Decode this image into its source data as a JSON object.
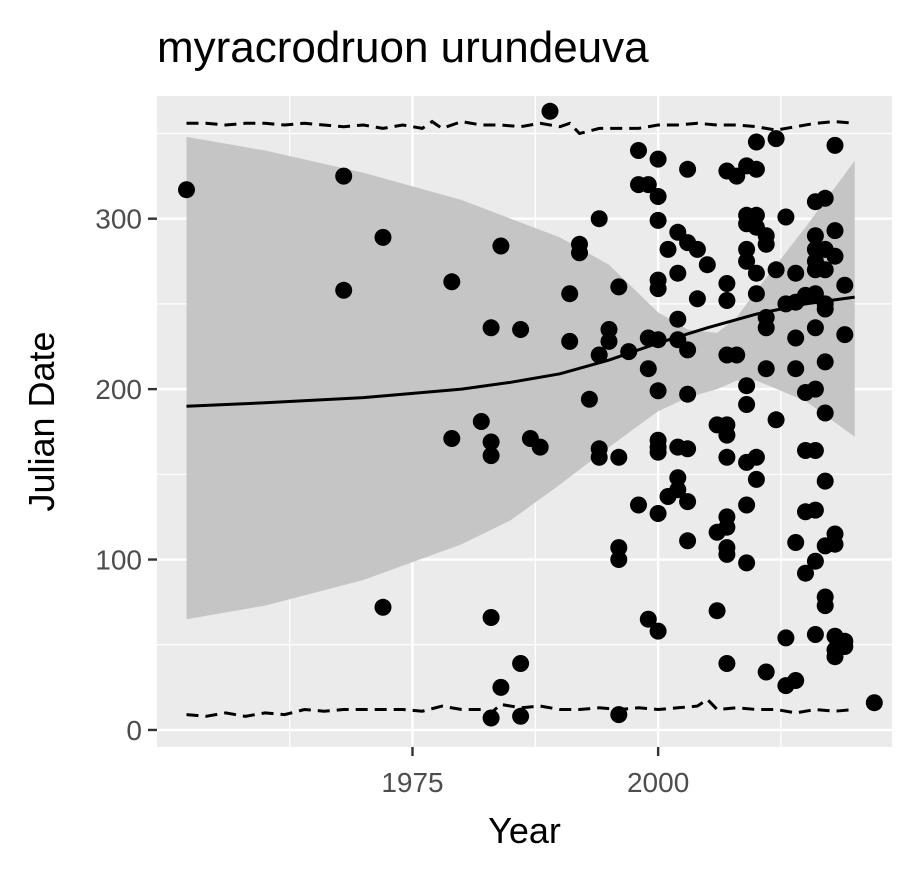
{
  "chart_data": {
    "type": "scatter",
    "title": "myracrodruon urundeuva",
    "xlabel": "Year",
    "ylabel": "Julian Date",
    "xlim": [
      1949,
      2023.8
    ],
    "ylim": [
      -10,
      372
    ],
    "x_ticks": [
      1975,
      2000
    ],
    "x_minor_ticks": [
      1962.5,
      1987.5,
      2012.5
    ],
    "y_ticks": [
      0,
      100,
      200,
      300
    ],
    "y_minor_ticks": [
      50,
      150,
      250,
      350
    ],
    "grid": true,
    "colors": {
      "panel": "#ebebeb",
      "grid": "#ffffff",
      "points": "#000000",
      "ribbon": "#c5c5c5",
      "trend": "#000000",
      "bounds": "#000000"
    },
    "points": [
      [
        1952,
        317
      ],
      [
        1968,
        325
      ],
      [
        1968,
        258
      ],
      [
        1972,
        289
      ],
      [
        1972,
        72
      ],
      [
        1979,
        263
      ],
      [
        1979,
        171
      ],
      [
        1982,
        181
      ],
      [
        1983,
        236
      ],
      [
        1983,
        169
      ],
      [
        1983,
        161
      ],
      [
        1983,
        66
      ],
      [
        1983,
        7
      ],
      [
        1984,
        284
      ],
      [
        1984,
        25
      ],
      [
        1986,
        235
      ],
      [
        1986,
        39
      ],
      [
        1986,
        8
      ],
      [
        1987,
        171
      ],
      [
        1988,
        166
      ],
      [
        1989,
        363
      ],
      [
        1991,
        256
      ],
      [
        1991,
        228
      ],
      [
        1992,
        285
      ],
      [
        1992,
        280
      ],
      [
        1993,
        194
      ],
      [
        1994,
        300
      ],
      [
        1994,
        220
      ],
      [
        1994,
        165
      ],
      [
        1994,
        160
      ],
      [
        1995,
        235
      ],
      [
        1995,
        228
      ],
      [
        1996,
        260
      ],
      [
        1996,
        160
      ],
      [
        1996,
        107
      ],
      [
        1996,
        100
      ],
      [
        1996,
        9
      ],
      [
        1997,
        222
      ],
      [
        1998,
        340
      ],
      [
        1998,
        320
      ],
      [
        1998,
        132
      ],
      [
        1999,
        320
      ],
      [
        1999,
        230
      ],
      [
        1999,
        212
      ],
      [
        1999,
        65
      ],
      [
        2000,
        335
      ],
      [
        2000,
        313
      ],
      [
        2000,
        299
      ],
      [
        2000,
        264
      ],
      [
        2000,
        259
      ],
      [
        2000,
        229
      ],
      [
        2000,
        199
      ],
      [
        2000,
        170
      ],
      [
        2000,
        166
      ],
      [
        2000,
        163
      ],
      [
        2000,
        127
      ],
      [
        2000,
        58
      ],
      [
        2001,
        282
      ],
      [
        2001,
        137
      ],
      [
        2002,
        292
      ],
      [
        2002,
        268
      ],
      [
        2002,
        241
      ],
      [
        2002,
        229
      ],
      [
        2002,
        166
      ],
      [
        2002,
        148
      ],
      [
        2002,
        141
      ],
      [
        2003,
        329
      ],
      [
        2003,
        286
      ],
      [
        2003,
        223
      ],
      [
        2003,
        197
      ],
      [
        2003,
        165
      ],
      [
        2003,
        134
      ],
      [
        2003,
        111
      ],
      [
        2004,
        282
      ],
      [
        2004,
        253
      ],
      [
        2005,
        273
      ],
      [
        2006,
        179
      ],
      [
        2006,
        116
      ],
      [
        2006,
        70
      ],
      [
        2007,
        328
      ],
      [
        2007,
        262
      ],
      [
        2007,
        252
      ],
      [
        2007,
        220
      ],
      [
        2007,
        179
      ],
      [
        2007,
        173
      ],
      [
        2007,
        160
      ],
      [
        2007,
        125
      ],
      [
        2007,
        119
      ],
      [
        2007,
        107
      ],
      [
        2007,
        103
      ],
      [
        2007,
        39
      ],
      [
        2008,
        325
      ],
      [
        2008,
        220
      ],
      [
        2009,
        331
      ],
      [
        2009,
        302
      ],
      [
        2009,
        297
      ],
      [
        2009,
        282
      ],
      [
        2009,
        275
      ],
      [
        2009,
        202
      ],
      [
        2009,
        191
      ],
      [
        2009,
        157
      ],
      [
        2009,
        132
      ],
      [
        2009,
        98
      ],
      [
        2010,
        345
      ],
      [
        2010,
        329
      ],
      [
        2010,
        302
      ],
      [
        2010,
        295
      ],
      [
        2010,
        268
      ],
      [
        2010,
        256
      ],
      [
        2010,
        160
      ],
      [
        2010,
        147
      ],
      [
        2011,
        290
      ],
      [
        2011,
        285
      ],
      [
        2011,
        242
      ],
      [
        2011,
        236
      ],
      [
        2011,
        212
      ],
      [
        2011,
        34
      ],
      [
        2012,
        347
      ],
      [
        2012,
        270
      ],
      [
        2012,
        182
      ],
      [
        2013,
        301
      ],
      [
        2013,
        250
      ],
      [
        2013,
        54
      ],
      [
        2013,
        26
      ],
      [
        2014,
        268
      ],
      [
        2014,
        251
      ],
      [
        2014,
        230
      ],
      [
        2014,
        212
      ],
      [
        2014,
        110
      ],
      [
        2014,
        29
      ],
      [
        2015,
        255
      ],
      [
        2015,
        198
      ],
      [
        2015,
        164
      ],
      [
        2015,
        128
      ],
      [
        2015,
        92
      ],
      [
        2016,
        310
      ],
      [
        2016,
        290
      ],
      [
        2016,
        282
      ],
      [
        2016,
        275
      ],
      [
        2016,
        270
      ],
      [
        2016,
        256
      ],
      [
        2016,
        236
      ],
      [
        2016,
        200
      ],
      [
        2016,
        164
      ],
      [
        2016,
        129
      ],
      [
        2016,
        99
      ],
      [
        2016,
        56
      ],
      [
        2017,
        312
      ],
      [
        2017,
        282
      ],
      [
        2017,
        270
      ],
      [
        2017,
        250
      ],
      [
        2017,
        247
      ],
      [
        2017,
        216
      ],
      [
        2017,
        186
      ],
      [
        2017,
        146
      ],
      [
        2017,
        108
      ],
      [
        2017,
        78
      ],
      [
        2017,
        73
      ],
      [
        2018,
        343
      ],
      [
        2018,
        293
      ],
      [
        2018,
        278
      ],
      [
        2018,
        115
      ],
      [
        2018,
        109
      ],
      [
        2018,
        55
      ],
      [
        2018,
        47
      ],
      [
        2018,
        43
      ],
      [
        2019,
        261
      ],
      [
        2019,
        232
      ],
      [
        2019,
        52
      ],
      [
        2019,
        49
      ],
      [
        2022,
        16
      ]
    ],
    "trend": {
      "x": [
        1952,
        1960,
        1970,
        1980,
        1985,
        1990,
        1995,
        2000,
        2005,
        2010,
        2015,
        2020
      ],
      "y": [
        190,
        192,
        195,
        200,
        204,
        209,
        217,
        227,
        236,
        244,
        250,
        254
      ]
    },
    "ribbon": {
      "x": [
        1952,
        1960,
        1970,
        1980,
        1985,
        1990,
        1995,
        2000,
        2003,
        2006,
        2008,
        2010,
        2015,
        2020
      ],
      "upper": [
        348,
        340,
        327,
        311,
        300,
        289,
        273,
        245,
        235,
        233,
        242,
        258,
        295,
        334
      ],
      "lower": [
        65,
        73,
        88,
        109,
        123,
        144,
        166,
        187,
        195,
        200,
        205,
        205,
        193,
        172
      ]
    },
    "upper_bound": {
      "x": [
        1952,
        1954,
        1956,
        1958,
        1960,
        1962,
        1964,
        1966,
        1968,
        1970,
        1972,
        1974,
        1976,
        1977,
        1978,
        1980,
        1982,
        1984,
        1986,
        1988,
        1990,
        1991,
        1992,
        1994,
        1996,
        1998,
        2000,
        2002,
        2004,
        2006,
        2008,
        2010,
        2012,
        2014,
        2016,
        2018,
        2020
      ],
      "y": [
        356,
        356,
        355,
        356,
        356,
        355,
        356,
        355,
        354,
        355,
        353,
        355,
        353,
        357,
        353,
        357,
        355,
        355,
        354,
        356,
        354,
        356,
        350,
        353,
        353,
        353,
        355,
        355,
        356,
        355,
        355,
        354,
        352,
        354,
        356,
        357,
        356
      ]
    },
    "lower_bound": {
      "x": [
        1952,
        1954,
        1956,
        1958,
        1960,
        1962,
        1964,
        1966,
        1968,
        1970,
        1972,
        1974,
        1976,
        1978,
        1980,
        1982,
        1983,
        1984,
        1986,
        1988,
        1990,
        1992,
        1994,
        1996,
        1998,
        2000,
        2002,
        2004,
        2005,
        2006,
        2008,
        2010,
        2012,
        2014,
        2016,
        2018,
        2020
      ],
      "y": [
        9,
        8,
        10,
        8,
        10,
        9,
        12,
        11,
        12,
        12,
        12,
        12,
        11,
        14,
        12,
        12,
        10,
        15,
        13,
        14,
        12,
        12,
        13,
        12,
        13,
        12,
        13,
        14,
        18,
        12,
        13,
        12,
        12,
        10,
        12,
        11,
        12
      ]
    }
  }
}
